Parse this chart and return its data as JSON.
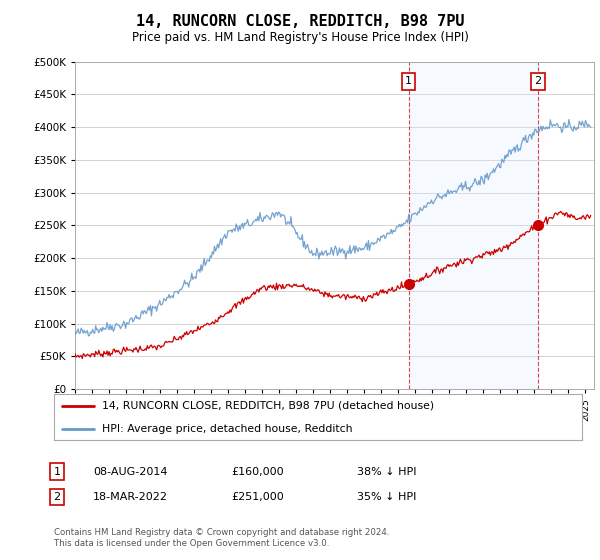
{
  "title": "14, RUNCORN CLOSE, REDDITCH, B98 7PU",
  "subtitle": "Price paid vs. HM Land Registry's House Price Index (HPI)",
  "legend_line1": "14, RUNCORN CLOSE, REDDITCH, B98 7PU (detached house)",
  "legend_line2": "HPI: Average price, detached house, Redditch",
  "sale1_date": 2014.6,
  "sale1_price": 160000,
  "sale1_label": "08-AUG-2014",
  "sale1_pct": "38% ↓ HPI",
  "sale2_date": 2022.21,
  "sale2_price": 251000,
  "sale2_label": "18-MAR-2022",
  "sale2_pct": "35% ↓ HPI",
  "footnote": "Contains HM Land Registry data © Crown copyright and database right 2024.\nThis data is licensed under the Open Government Licence v3.0.",
  "ylim": [
    0,
    500000
  ],
  "xlim": [
    1995,
    2025.5
  ],
  "red_color": "#cc0000",
  "blue_color": "#6699cc",
  "shade_color": "#ddeeff",
  "grid_color": "#cccccc",
  "background_color": "#ffffff",
  "title_fontsize": 11,
  "subtitle_fontsize": 9
}
